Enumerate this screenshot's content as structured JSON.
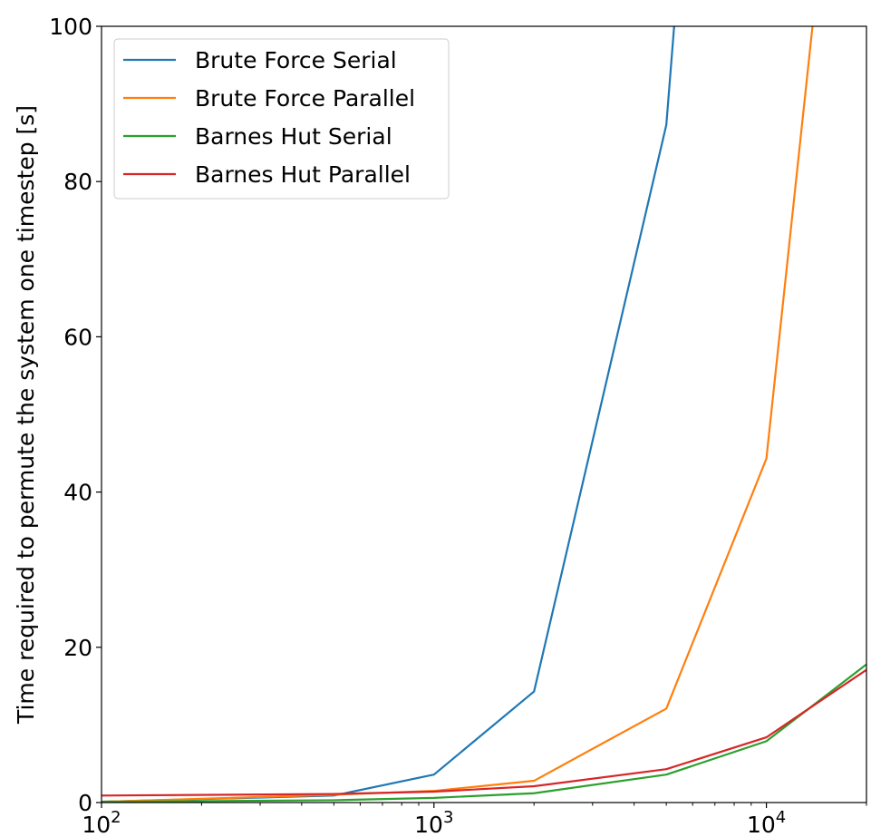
{
  "chart_data": {
    "type": "line",
    "title": "",
    "xlabel": "",
    "ylabel": "Time required to permute the system one timestep [s]",
    "xscale": "log",
    "xlim": [
      100,
      20000
    ],
    "ylim": [
      0,
      100
    ],
    "xticks": [
      {
        "value": 100,
        "base": "10",
        "exp": "2"
      },
      {
        "value": 1000,
        "base": "10",
        "exp": "3"
      },
      {
        "value": 10000,
        "base": "10",
        "exp": "4"
      }
    ],
    "yticks": [
      0,
      20,
      40,
      60,
      80,
      100
    ],
    "grid": false,
    "legend_position": "top-left",
    "series": [
      {
        "name": "Brute Force Serial",
        "color": "#1f77b4",
        "x": [
          100,
          500,
          1000,
          2000,
          5000,
          6000
        ],
        "y": [
          0.1,
          0.9,
          3.6,
          14.3,
          87.3,
          130
        ]
      },
      {
        "name": "Brute Force Parallel",
        "color": "#ff7f0e",
        "x": [
          100,
          500,
          1000,
          2000,
          5000,
          10000,
          15000
        ],
        "y": [
          0.1,
          1.0,
          1.5,
          2.8,
          12.1,
          44.3,
          115
        ]
      },
      {
        "name": "Barnes Hut Serial",
        "color": "#2ca02c",
        "x": [
          100,
          500,
          1000,
          2000,
          5000,
          10000,
          20000
        ],
        "y": [
          0.1,
          0.3,
          0.6,
          1.2,
          3.6,
          7.9,
          17.8
        ]
      },
      {
        "name": "Barnes Hut Parallel",
        "color": "#d62728",
        "x": [
          100,
          500,
          1000,
          2000,
          5000,
          10000,
          20000
        ],
        "y": [
          0.9,
          1.1,
          1.4,
          2.1,
          4.3,
          8.4,
          17.1
        ]
      }
    ]
  }
}
